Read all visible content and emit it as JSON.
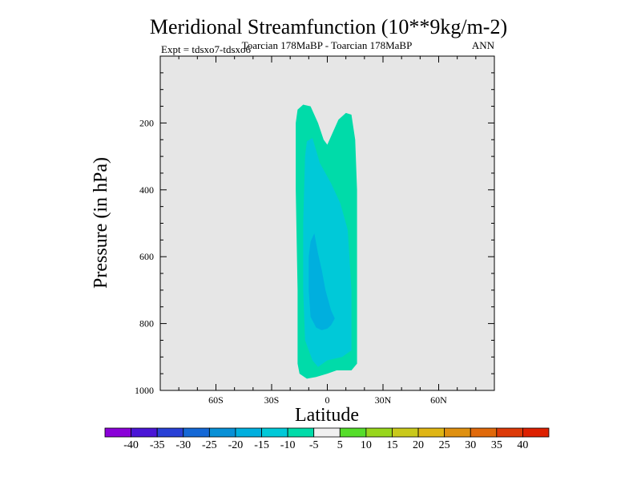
{
  "chart_data": {
    "type": "contour",
    "title": "Meridional Streamfunction (10**9kg/m-2)",
    "subtitle_left": "Expt = tdsxo7-tdsxo6",
    "subtitle_center": "Toarcian 178MaBP - Toarcian 178MaBP",
    "subtitle_right": "ANN",
    "xlabel": "Latitude",
    "ylabel": "Pressure (in hPa)",
    "xlim": [
      -90,
      90
    ],
    "ylim": [
      1000,
      0
    ],
    "x_ticks": [
      {
        "value": -60,
        "label": "60S"
      },
      {
        "value": -30,
        "label": "30S"
      },
      {
        "value": 0,
        "label": "0"
      },
      {
        "value": 30,
        "label": "30N"
      },
      {
        "value": 60,
        "label": "60N"
      }
    ],
    "y_ticks": [
      {
        "value": 200,
        "label": "200"
      },
      {
        "value": 400,
        "label": "400"
      },
      {
        "value": 600,
        "label": "600"
      },
      {
        "value": 800,
        "label": "800"
      },
      {
        "value": 1000,
        "label": "1000"
      }
    ],
    "plot_background": "#e6e6e6",
    "contour_regions": [
      {
        "level": "-5 to -10",
        "color": "#00dba9",
        "polygon": [
          [
            -16,
            160
          ],
          [
            -13,
            145
          ],
          [
            -9,
            150
          ],
          [
            -5,
            200
          ],
          [
            -2,
            250
          ],
          [
            0,
            265
          ],
          [
            2,
            240
          ],
          [
            6,
            190
          ],
          [
            10,
            170
          ],
          [
            13,
            175
          ],
          [
            15,
            250
          ],
          [
            16,
            400
          ],
          [
            16,
            700
          ],
          [
            16,
            920
          ],
          [
            13,
            940
          ],
          [
            5,
            940
          ],
          [
            0,
            950
          ],
          [
            -6,
            960
          ],
          [
            -11,
            965
          ],
          [
            -15,
            950
          ],
          [
            -16,
            920
          ],
          [
            -16,
            700
          ],
          [
            -17,
            400
          ],
          [
            -17,
            200
          ]
        ]
      },
      {
        "level": "-10 to -15",
        "color": "#00c9d8",
        "polygon": [
          [
            -11,
            255
          ],
          [
            -8,
            245
          ],
          [
            -4,
            320
          ],
          [
            2,
            380
          ],
          [
            7,
            440
          ],
          [
            11,
            520
          ],
          [
            13,
            700
          ],
          [
            13,
            880
          ],
          [
            8,
            900
          ],
          [
            0,
            910
          ],
          [
            -5,
            930
          ],
          [
            -8,
            910
          ],
          [
            -12,
            850
          ],
          [
            -13,
            700
          ],
          [
            -13,
            500
          ],
          [
            -12,
            300
          ]
        ]
      },
      {
        "level": "-15 to -20",
        "color": "#00afde",
        "polygon": [
          [
            -9,
            555
          ],
          [
            -7,
            530
          ],
          [
            -5,
            590
          ],
          [
            -3,
            640
          ],
          [
            -1,
            700
          ],
          [
            2,
            760
          ],
          [
            4,
            785
          ],
          [
            2,
            805
          ],
          [
            0,
            815
          ],
          [
            -3,
            820
          ],
          [
            -6,
            812
          ],
          [
            -9,
            780
          ],
          [
            -10,
            700
          ],
          [
            -10,
            600
          ]
        ]
      }
    ],
    "colorbar": {
      "levels": [
        "-40",
        "-35",
        "-30",
        "-25",
        "-20",
        "-15",
        "-10",
        "-5",
        "5",
        "10",
        "15",
        "20",
        "25",
        "30",
        "35",
        "40"
      ],
      "colors": [
        "#8a00d8",
        "#4a15d6",
        "#2840d6",
        "#1468d6",
        "#0890d6",
        "#00afde",
        "#00c9d8",
        "#00dba9",
        "#f0f0f0",
        "#55dd2a",
        "#98d61c",
        "#c9c91b",
        "#dfb514",
        "#df9010",
        "#e0690a",
        "#dd3a08",
        "#dd2000"
      ]
    }
  }
}
